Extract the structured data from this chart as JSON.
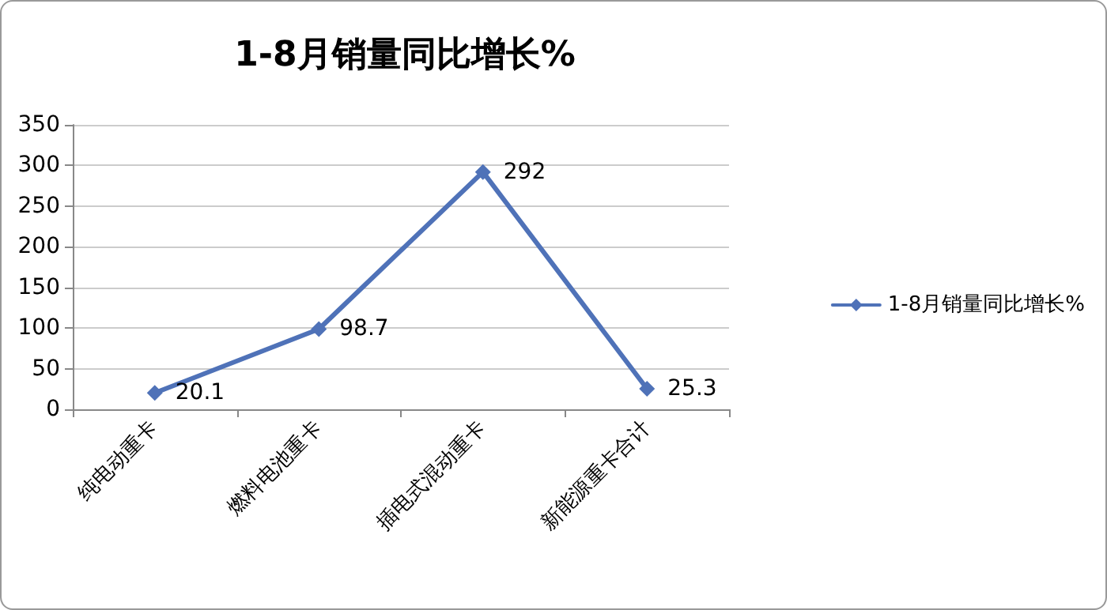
{
  "chart_data": {
    "type": "line",
    "title": "1-8月销量同比增长%",
    "categories": [
      "纯电动重卡",
      "燃料电池重卡",
      "插电式混动重卡",
      "新能源重卡合计"
    ],
    "series": [
      {
        "name": "1-8月销量同比增长%",
        "color": "#4f72b8",
        "values": [
          20.1,
          98.7,
          292,
          25.3
        ]
      }
    ],
    "ylim": [
      0,
      350
    ],
    "yticks": [
      0,
      50,
      100,
      150,
      200,
      250,
      300,
      350
    ],
    "grid": "y",
    "legend": "right",
    "marker": "diamond",
    "line_style": "solid",
    "data_labels": true
  }
}
